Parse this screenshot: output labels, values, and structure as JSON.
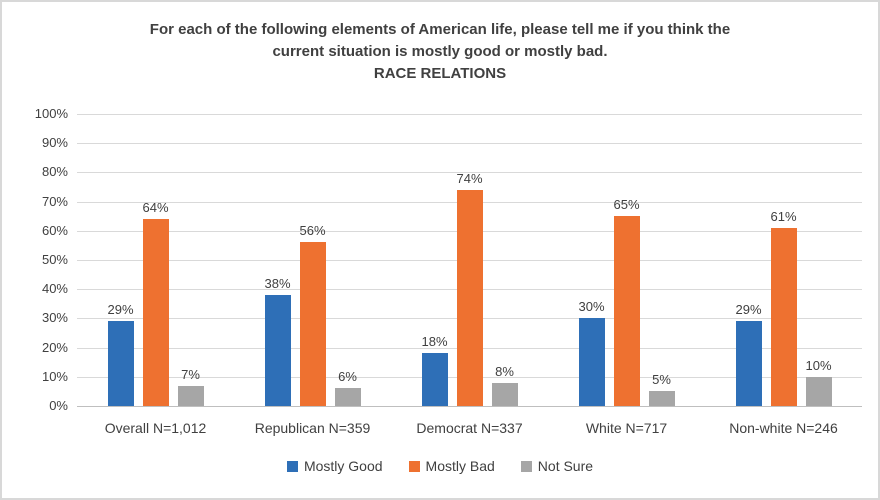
{
  "chart_data": {
    "type": "bar",
    "title": "For each of the following elements of American life, please tell me if you think the current situation is mostly good or mostly bad.",
    "title_lines": [
      "For each of the following elements of American life, please tell me if you think the",
      "current situation is mostly good or mostly bad."
    ],
    "subtitle": "RACE RELATIONS",
    "categories": [
      "Overall N=1,012",
      "Republican N=359",
      "Democrat N=337",
      "White N=717",
      "Non-white N=246"
    ],
    "series": [
      {
        "name": "Mostly Good",
        "color": "#2E6FB7",
        "values": [
          29,
          38,
          18,
          30,
          29
        ]
      },
      {
        "name": "Mostly Bad",
        "color": "#EE7130",
        "values": [
          64,
          56,
          74,
          65,
          61
        ]
      },
      {
        "name": "Not Sure",
        "color": "#A6A6A6",
        "values": [
          7,
          6,
          8,
          5,
          10
        ]
      }
    ],
    "data_label_format": "{v}%",
    "y_axis": {
      "min": 0,
      "max": 100,
      "step": 10,
      "tick_format": "{v}%"
    },
    "grid": true,
    "legend_position": "bottom",
    "gridline_color": "#D9D9D9",
    "text_color": "#404040"
  }
}
